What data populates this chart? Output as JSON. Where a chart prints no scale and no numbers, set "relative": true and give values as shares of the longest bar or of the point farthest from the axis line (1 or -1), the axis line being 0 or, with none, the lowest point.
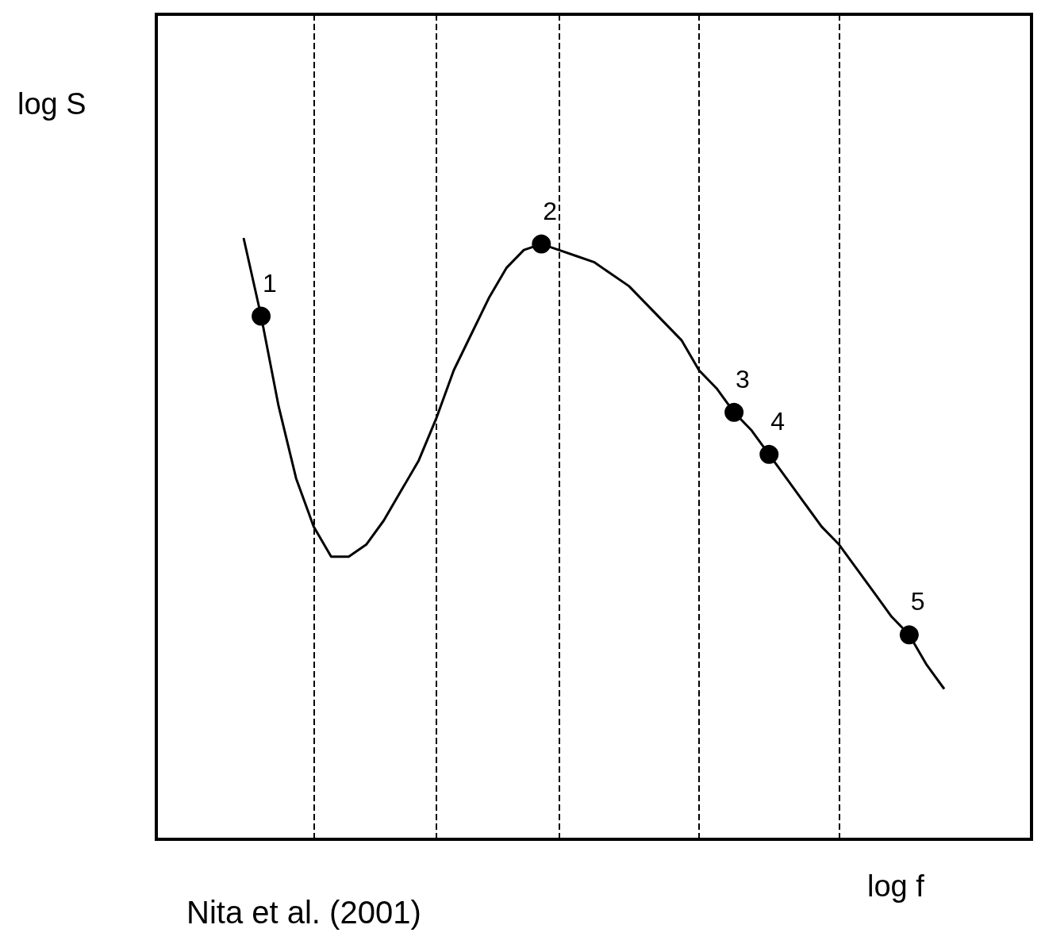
{
  "chart_data": {
    "type": "line",
    "relative": true,
    "xlabel": "log f",
    "grid": "x",
    "categories": [
      null,
      null,
      null,
      null,
      null,
      null,
      null,
      null,
      null,
      null,
      null,
      null,
      null,
      null,
      null,
      null,
      null,
      null,
      null,
      null,
      null,
      null,
      null,
      null,
      null,
      null,
      null,
      null,
      null,
      null,
      null,
      null,
      null,
      null,
      null,
      null,
      null,
      null,
      null,
      null,
      null
    ],
    "series": [
      {
        "color": "#000000",
        "values": [
          1.0,
          0.87,
          0.72,
          0.6,
          0.52,
          0.47,
          0.47,
          0.49,
          0.53,
          0.58,
          0.63,
          0.7,
          0.78,
          0.84,
          0.9,
          0.95,
          0.98,
          0.99,
          0.98,
          0.97,
          0.96,
          0.94,
          0.92,
          0.89,
          0.86,
          0.83,
          0.78,
          0.75,
          0.71,
          0.68,
          0.64,
          0.6,
          0.56,
          0.52,
          0.49,
          0.45,
          0.41,
          0.37,
          0.34,
          0.29,
          0.25
        ]
      }
    ],
    "annotations": [
      "log S",
      {
        "text": "1",
        "y": 0.87
      },
      {
        "text": "2",
        "y": 0.99
      },
      {
        "text": "3",
        "y": 0.71
      },
      {
        "text": "4",
        "y": 0.64
      },
      {
        "text": "5",
        "y": 0.34
      },
      "Nita et al. (2001)"
    ]
  }
}
